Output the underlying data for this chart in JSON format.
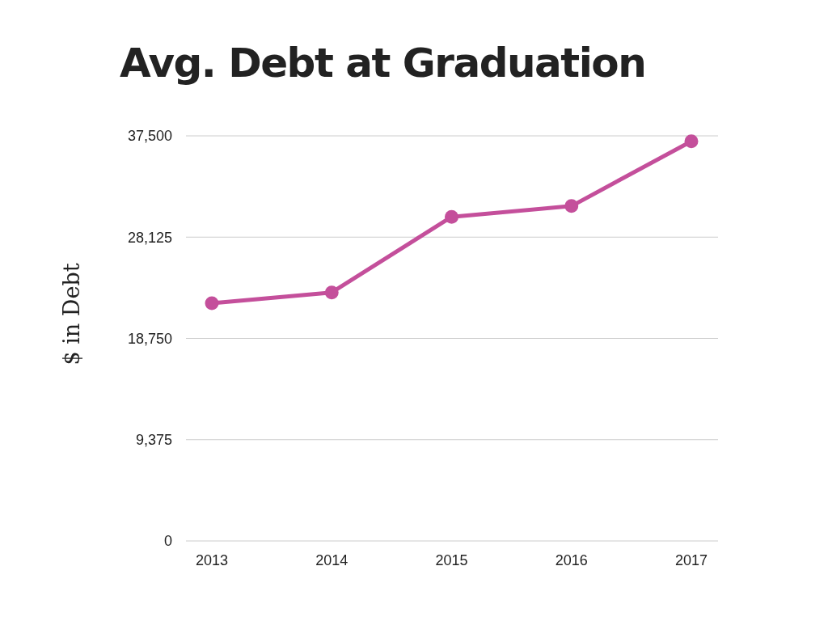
{
  "chart_data": {
    "type": "line",
    "title": "Avg. Debt at Graduation",
    "ylabel": "$ in Debt",
    "categories": [
      "2013",
      "2014",
      "2015",
      "2016",
      "2017"
    ],
    "series": [
      {
        "color": "#c44f9b",
        "values": [
          22000,
          23000,
          30000,
          31000,
          37000
        ]
      }
    ],
    "ylim": [
      0,
      37500
    ],
    "yticks": [
      0,
      {
        "value": 9375,
        "label": "9,375"
      },
      {
        "value": 18750,
        "label": "18,750"
      },
      {
        "value": 28125,
        "label": "28,125"
      },
      {
        "value": 37500,
        "label": "37,500"
      }
    ],
    "grid": "y",
    "marker": "circle",
    "line_style": "solid"
  }
}
